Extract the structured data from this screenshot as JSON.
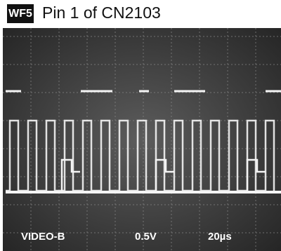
{
  "header": {
    "badge": "WF5",
    "title": "Pin 1 of CN2103"
  },
  "scope": {
    "channel": "VIDEO-B",
    "volts_per_div": "0.5V",
    "time_per_div": "20µs"
  }
}
